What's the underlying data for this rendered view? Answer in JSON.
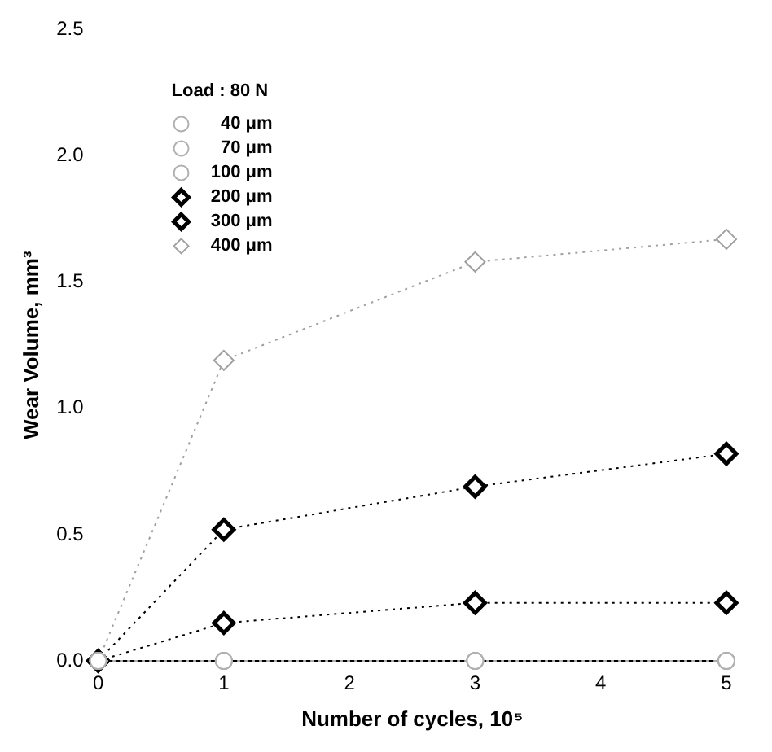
{
  "chart_data": {
    "type": "line",
    "xlabel": "Number of cycles, 10⁵",
    "ylabel": "Wear Volume, mm³",
    "legend_title": "Load : 80 N",
    "x": [
      0,
      1,
      3,
      5
    ],
    "xlim": [
      0,
      5
    ],
    "xticks": [
      0,
      1,
      2,
      3,
      4,
      5
    ],
    "ylim": [
      0,
      2.5
    ],
    "yticks": [
      {
        "value": 0,
        "label": "0.0"
      },
      0.5,
      {
        "value": 1,
        "label": "1.0"
      },
      1.5,
      {
        "value": 2,
        "label": "2.0"
      },
      2.5
    ],
    "grid": false,
    "legend": "top left",
    "line_style": "dotted",
    "series": [
      {
        "name": "40 μm",
        "color": "#b0b0b0",
        "marker": "circle",
        "values": [
          0,
          0,
          0,
          0
        ]
      },
      {
        "name": "70 μm",
        "color": "#b0b0b0",
        "marker": "circle",
        "values": [
          0,
          0,
          0,
          0
        ]
      },
      {
        "name": "100 μm",
        "color": "#b0b0b0",
        "marker": "circle",
        "values": [
          0,
          0,
          0,
          0
        ]
      },
      {
        "name": "200 μm",
        "color": "#000000",
        "marker": "diamond",
        "values": [
          0,
          0.15,
          0.23,
          0.23
        ]
      },
      {
        "name": "300 μm",
        "color": "#000000",
        "marker": "diamond",
        "values": [
          0,
          0.52,
          0.69,
          0.82
        ]
      },
      {
        "name": "400 μm",
        "color": "#a0a0a0",
        "marker": "diamond",
        "values": [
          0,
          1.19,
          1.58,
          1.67
        ]
      }
    ]
  }
}
